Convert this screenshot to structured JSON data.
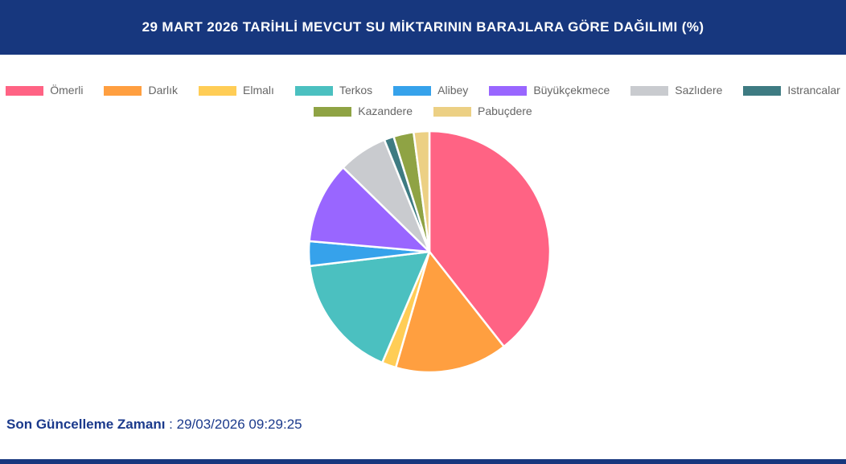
{
  "header": {
    "title": "29 MART 2026 TARİHLİ MEVCUT SU MİKTARININ BARAJLARA GÖRE DAĞILIMI (%)",
    "bg_color": "#17377E",
    "text_color": "#FFFFFF"
  },
  "legend": {
    "rows": [
      [
        {
          "label": "Ömerli",
          "color": "#FF6384"
        },
        {
          "label": "Darlık",
          "color": "#FF9F40"
        },
        {
          "label": "Elmalı",
          "color": "#FFCD56"
        },
        {
          "label": "Terkos",
          "color": "#4BC0C0"
        },
        {
          "label": "Alibey",
          "color": "#36A2EB"
        },
        {
          "label": "Büyükçekmece",
          "color": "#9966FF"
        },
        {
          "label": "Sazlıdere",
          "color": "#C9CBCF"
        },
        {
          "label": "Istrancalar",
          "color": "#3E7B82"
        }
      ],
      [
        {
          "label": "Kazandere",
          "color": "#8FA344"
        },
        {
          "label": "Pabuçdere",
          "color": "#ECD084"
        }
      ]
    ]
  },
  "chart_data": {
    "type": "pie",
    "title": "29 MART 2026 TARİHLİ MEVCUT SU MİKTARININ BARAJLARA GÖRE DAĞILIMI (%)",
    "unit": "%",
    "categories": [
      "Ömerli",
      "Darlık",
      "Elmalı",
      "Terkos",
      "Alibey",
      "Büyükçekmece",
      "Sazlıdere",
      "Istrancalar",
      "Kazandere",
      "Pabuçdere"
    ],
    "values": [
      39.4,
      15.1,
      1.9,
      16.7,
      3.3,
      10.9,
      6.6,
      1.3,
      2.7,
      2.1
    ],
    "colors": [
      "#FF6384",
      "#FF9F40",
      "#FFCD56",
      "#4BC0C0",
      "#36A2EB",
      "#9966FF",
      "#C9CBCF",
      "#3E7B82",
      "#8FA344",
      "#ECD084"
    ],
    "start_angle_deg": 0,
    "direction": "clockwise",
    "slice_border_color": "#FFFFFF",
    "legend_position": "top"
  },
  "footer": {
    "label": "Son Güncelleme Zamanı",
    "value": " : 29/03/2026 09:29:25"
  },
  "accent_color": "#17377E"
}
